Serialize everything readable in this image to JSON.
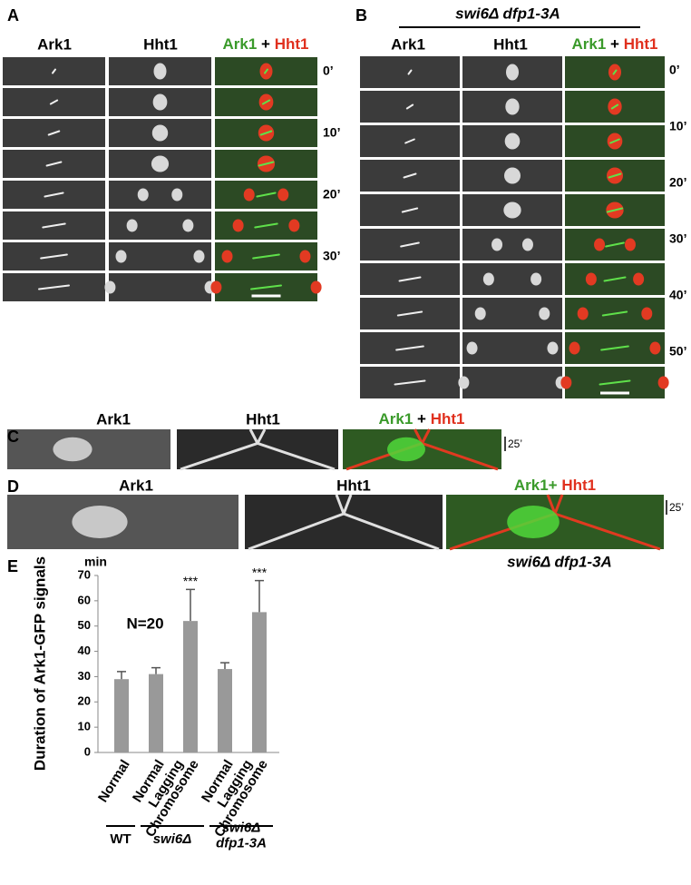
{
  "panels": {
    "A": {
      "label": "A",
      "headers": [
        "Ark1",
        "Hht1"
      ],
      "merge": [
        "Ark1",
        "+",
        "Hht1"
      ],
      "times": [
        "0’",
        "10’",
        "20’",
        "30’"
      ]
    },
    "B": {
      "label": "B",
      "title": "swi6Δ dfp1-3A",
      "headers": [
        "Ark1",
        "Hht1"
      ],
      "merge": [
        "Ark1",
        "+",
        "Hht1"
      ],
      "times": [
        "0’",
        "10’",
        "20’",
        "30’",
        "40’",
        "50’"
      ]
    },
    "C": {
      "label": "C",
      "headers": [
        "Ark1",
        "Hht1"
      ],
      "merge": [
        "Ark1",
        "+",
        "Hht1"
      ],
      "scale": "25’"
    },
    "D": {
      "label": "D",
      "headers": [
        "Ark1",
        "Hht1"
      ],
      "merge": [
        "Ark1+",
        "Hht1"
      ],
      "scale": "25’",
      "caption": "swi6Δ dfp1-3A"
    },
    "E": {
      "label": "E"
    }
  },
  "chart_data": {
    "type": "bar",
    "ylabel": "Duration of Ark1-GFP signals",
    "yunit": "min",
    "annotation": "N=20",
    "categories": [
      [
        "Normal"
      ],
      [
        "Normal"
      ],
      [
        "Lagging",
        "Chromosome"
      ],
      [
        "Normal"
      ],
      [
        "Lagging",
        "Chromosome"
      ]
    ],
    "values": [
      29,
      31,
      52,
      33,
      55.5
    ],
    "errors": [
      3,
      2.5,
      12.5,
      2.5,
      12.5
    ],
    "significance": [
      null,
      null,
      "***",
      null,
      "***"
    ],
    "color": "#999999",
    "ylim": [
      0,
      70
    ],
    "yticks": [
      0,
      10,
      20,
      30,
      40,
      50,
      60,
      70
    ],
    "groups": [
      {
        "label": [
          "WT"
        ],
        "size": 1
      },
      {
        "label": [
          "swi6Δ"
        ],
        "size": 2
      },
      {
        "label": [
          "swi6Δ",
          "dfp1-3A"
        ],
        "size": 2
      }
    ]
  }
}
